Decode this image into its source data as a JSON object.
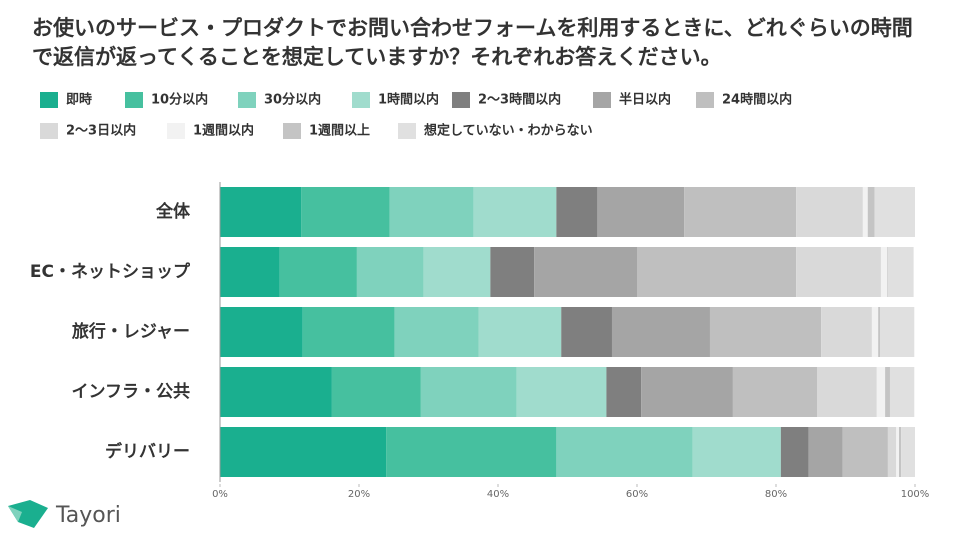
{
  "chart_data": {
    "type": "stacked-bar-horizontal",
    "title": "お使いのサービス・プロダクトでお問い合わせフォームを利用するときに、どれぐらいの時間で返信が返ってくることを想定していますか？それぞれお答えください。",
    "brand": "Tayori",
    "categories": [
      "全体",
      "EC・ネットショップ",
      "旅行・レジャー",
      "インフラ・公共",
      "デリバリー"
    ],
    "series": [
      {
        "name": "即時",
        "color": "#1aaf8f",
        "values": [
          11.7,
          8.6,
          11.9,
          16.1,
          23.9
        ]
      },
      {
        "name": "10分以内",
        "color": "#46c09f",
        "values": [
          12.7,
          11.1,
          13.2,
          12.8,
          24.5
        ]
      },
      {
        "name": "30分以内",
        "color": "#7fd2bd",
        "values": [
          12.1,
          9.6,
          12.1,
          13.8,
          19.6
        ]
      },
      {
        "name": "1時間以内",
        "color": "#a0dccd",
        "values": [
          11.9,
          9.6,
          11.9,
          12.9,
          12.7
        ]
      },
      {
        "name": "2〜3時間以内",
        "color": "#7f7f7f",
        "values": [
          5.9,
          6.3,
          7.3,
          5.0,
          4.0
        ]
      },
      {
        "name": "半日以内",
        "color": "#a5a5a5",
        "values": [
          12.5,
          14.8,
          14.1,
          13.2,
          4.9
        ]
      },
      {
        "name": "24時間以内",
        "color": "#bfbfbf",
        "values": [
          16.1,
          22.9,
          16.0,
          12.1,
          6.5
        ]
      },
      {
        "name": "2〜3日以内",
        "color": "#d9d9d9",
        "values": [
          9.6,
          12.2,
          7.3,
          8.6,
          1.2
        ]
      },
      {
        "name": "1週間以内",
        "color": "#f2f2f2",
        "values": [
          0.7,
          0.9,
          0.9,
          1.2,
          0.4
        ]
      },
      {
        "name": "1週間以上",
        "color": "#c4c4c4",
        "values": [
          1.0,
          0.1,
          0.3,
          0.7,
          0.3
        ]
      },
      {
        "name": "想定していない・わからない",
        "color": "#e0e0e0",
        "values": [
          5.8,
          3.7,
          4.9,
          3.5,
          2.0
        ]
      }
    ],
    "xlim": [
      0,
      100
    ],
    "xticks": [
      {
        "value": 0,
        "label": "0%"
      },
      {
        "value": 20,
        "label": "20%"
      },
      {
        "value": 40,
        "label": "40%"
      },
      {
        "value": 60,
        "label": "60%"
      },
      {
        "value": 80,
        "label": "80%"
      },
      {
        "value": 100,
        "label": "100%"
      }
    ]
  }
}
